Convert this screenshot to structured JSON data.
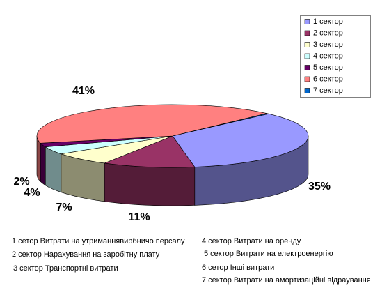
{
  "chart_data": {
    "type": "pie",
    "categories": [
      "1 сектор",
      "2 сектор",
      "3 сектор",
      "4 сектор",
      "5 сектор",
      "6 сектор",
      "7 сектор"
    ],
    "values": [
      35,
      11,
      7,
      4,
      2,
      41,
      0.3
    ],
    "value_labels": [
      "35%",
      "11%",
      "7%",
      "4%",
      "2%",
      "41%",
      null
    ],
    "colors": [
      "#9999ff",
      "#993366",
      "#ffffcc",
      "#ccffff",
      "#660066",
      "#ff8080",
      "#0066cc"
    ],
    "legend": "top-right",
    "annotations": [
      "1 сетор Витрати на утриманнявирбничо персалу",
      "2 сектор Нарахування на заробітну плату",
      "3 сектор Транспортні витрати",
      "4 сектор Витрати на оренду",
      "5 сектор Витрати на електроенергію",
      "6 сетор Інші витрати",
      "7 сектор Витрати на амортизаційні відраування"
    ]
  }
}
